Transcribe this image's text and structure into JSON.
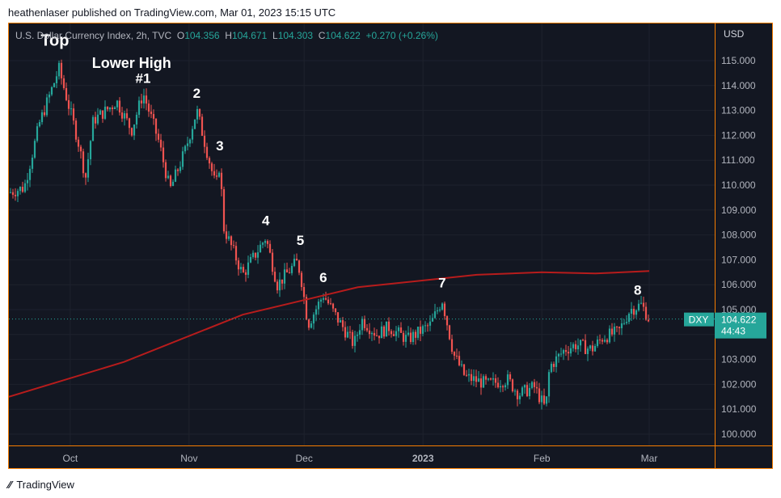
{
  "publisher_line": "heathenlaser published on TradingView.com, Mar 01, 2023 15:15 UTC",
  "footer_brand": "TradingView",
  "legend": {
    "symbol_desc": "U.S. Dollar Currency Index, 2h, TVC",
    "o_label": "O",
    "o_value": "104.356",
    "h_label": "H",
    "h_value": "104.671",
    "l_label": "L",
    "l_value": "104.303",
    "c_label": "C",
    "c_value": "104.622",
    "change": "+0.270 (+0.26%)"
  },
  "price_axis_currency": "USD",
  "symbol_tag": "DXY",
  "last_price": "104.622",
  "countdown": "44:43",
  "colors": {
    "background": "#131722",
    "up": "#26a69a",
    "down": "#ef5350",
    "moving_average": "#b71c1c",
    "frame": "#f57c00"
  },
  "chart_data": {
    "type": "candlestick",
    "y_axis": {
      "min": 99.5,
      "max": 116,
      "ticks": [
        "115.000",
        "114.000",
        "113.000",
        "112.000",
        "111.000",
        "110.000",
        "109.000",
        "108.000",
        "107.000",
        "106.000",
        "105.000",
        "104.000",
        "103.000",
        "102.000",
        "101.000",
        "100.000"
      ]
    },
    "x_axis": {
      "start": "2022-09-15",
      "end": "2023-03-01",
      "ticks": [
        {
          "label": "Oct",
          "date": "2022-10-01",
          "bold": false
        },
        {
          "label": "Nov",
          "date": "2022-11-01",
          "bold": false
        },
        {
          "label": "Dec",
          "date": "2022-12-01",
          "bold": false
        },
        {
          "label": "2023",
          "date": "2023-01-01",
          "bold": true
        },
        {
          "label": "Feb",
          "date": "2023-02-01",
          "bold": false
        },
        {
          "label": "Mar",
          "date": "2023-03-01",
          "bold": false
        }
      ]
    },
    "price_path": [
      [
        "2022-09-15",
        109.7
      ],
      [
        "2022-09-19",
        109.9
      ],
      [
        "2022-09-23",
        112.5
      ],
      [
        "2022-09-27",
        114.2
      ],
      [
        "2022-09-28",
        114.7
      ],
      [
        "2022-10-03",
        111.8
      ],
      [
        "2022-10-05",
        110.3
      ],
      [
        "2022-10-07",
        112.6
      ],
      [
        "2022-10-12",
        113.2
      ],
      [
        "2022-10-13",
        113.4
      ],
      [
        "2022-10-17",
        112.2
      ],
      [
        "2022-10-20",
        113.7
      ],
      [
        "2022-10-24",
        111.8
      ],
      [
        "2022-10-27",
        109.8
      ],
      [
        "2022-10-31",
        111.4
      ],
      [
        "2022-11-03",
        113.0
      ],
      [
        "2022-11-08",
        109.9
      ],
      [
        "2022-11-09",
        110.9
      ],
      [
        "2022-11-10",
        108.3
      ],
      [
        "2022-11-15",
        106.4
      ],
      [
        "2022-11-21",
        107.9
      ],
      [
        "2022-11-24",
        106.0
      ],
      [
        "2022-11-29",
        106.9
      ],
      [
        "2022-11-30",
        106.5
      ],
      [
        "2022-12-02",
        104.4
      ],
      [
        "2022-12-06",
        105.6
      ],
      [
        "2022-12-09",
        104.8
      ],
      [
        "2022-12-14",
        103.6
      ],
      [
        "2022-12-16",
        104.6
      ],
      [
        "2022-12-20",
        104.0
      ],
      [
        "2022-12-23",
        104.3
      ],
      [
        "2022-12-28",
        103.8
      ],
      [
        "2023-01-03",
        104.4
      ],
      [
        "2023-01-06",
        105.4
      ],
      [
        "2023-01-09",
        103.2
      ],
      [
        "2023-01-12",
        102.3
      ],
      [
        "2023-01-18",
        102.0
      ],
      [
        "2023-01-23",
        102.2
      ],
      [
        "2023-01-26",
        101.6
      ],
      [
        "2023-01-30",
        101.9
      ],
      [
        "2023-02-02",
        101.0
      ],
      [
        "2023-02-03",
        102.7
      ],
      [
        "2023-02-07",
        103.4
      ],
      [
        "2023-02-10",
        103.6
      ],
      [
        "2023-02-14",
        103.4
      ],
      [
        "2023-02-17",
        103.9
      ],
      [
        "2023-02-21",
        104.1
      ],
      [
        "2023-02-24",
        105.0
      ],
      [
        "2023-02-27",
        105.2
      ],
      [
        "2023-03-01",
        104.6
      ]
    ],
    "moving_average": [
      [
        "2022-09-15",
        101.5
      ],
      [
        "2022-10-15",
        102.9
      ],
      [
        "2022-11-15",
        104.8
      ],
      [
        "2022-12-15",
        105.9
      ],
      [
        "2023-01-15",
        106.4
      ],
      [
        "2023-02-01",
        106.5
      ],
      [
        "2023-02-15",
        106.45
      ],
      [
        "2023-03-01",
        106.55
      ]
    ],
    "last_price": 104.622,
    "annotations": [
      {
        "text": "Top",
        "date": "2022-09-27",
        "price": 115.6,
        "size": "large"
      },
      {
        "text": "Lower High",
        "date": "2022-10-17",
        "price": 114.7,
        "size": "medium"
      },
      {
        "text": "#1",
        "date": "2022-10-20",
        "price": 114.1,
        "size": "medium"
      },
      {
        "text": "2",
        "date": "2022-11-03",
        "price": 113.5,
        "size": "medium"
      },
      {
        "text": "3",
        "date": "2022-11-09",
        "price": 111.4,
        "size": "medium"
      },
      {
        "text": "4",
        "date": "2022-11-21",
        "price": 108.4,
        "size": "medium"
      },
      {
        "text": "5",
        "date": "2022-11-30",
        "price": 107.6,
        "size": "medium"
      },
      {
        "text": "6",
        "date": "2022-12-06",
        "price": 106.1,
        "size": "medium"
      },
      {
        "text": "7",
        "date": "2023-01-06",
        "price": 105.9,
        "size": "medium"
      },
      {
        "text": "8",
        "date": "2023-02-26",
        "price": 105.6,
        "size": "medium"
      }
    ]
  }
}
